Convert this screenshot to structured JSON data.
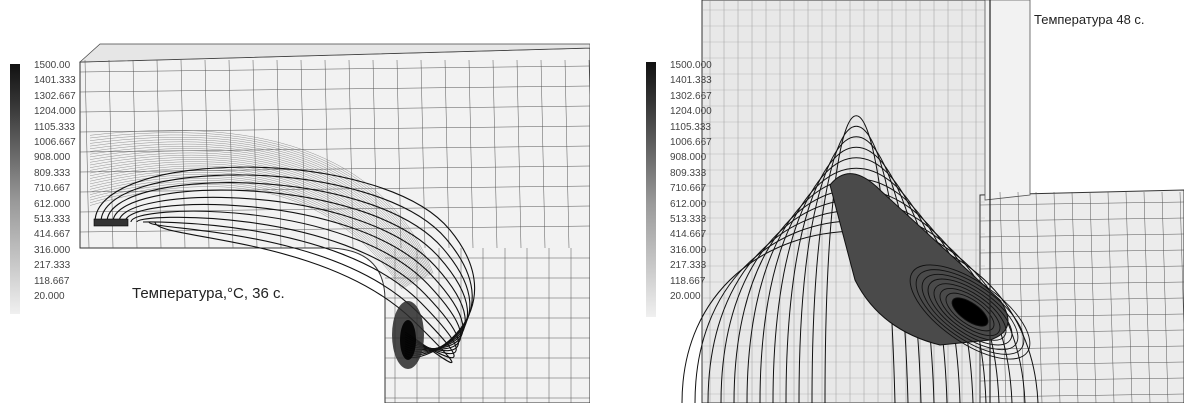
{
  "legend_levels": [
    "1500.000",
    "1401.333",
    "1302.667",
    "1204.000",
    "1105.333",
    "1006.667",
    "908.000",
    "809.333",
    "710.667",
    "612.000",
    "513.333",
    "414.667",
    "316.000",
    "217.333",
    "118.667",
    "20.000"
  ],
  "legend_left_label": "1500.00",
  "left_panel": {
    "caption": "Температура,°C, 36 с."
  },
  "right_panel": {
    "caption": "Температура 48 с."
  },
  "colors": {
    "mesh": "#555555",
    "isoline": "#111111",
    "hot": "#2a2a2a",
    "background": "#f2f2f2"
  }
}
